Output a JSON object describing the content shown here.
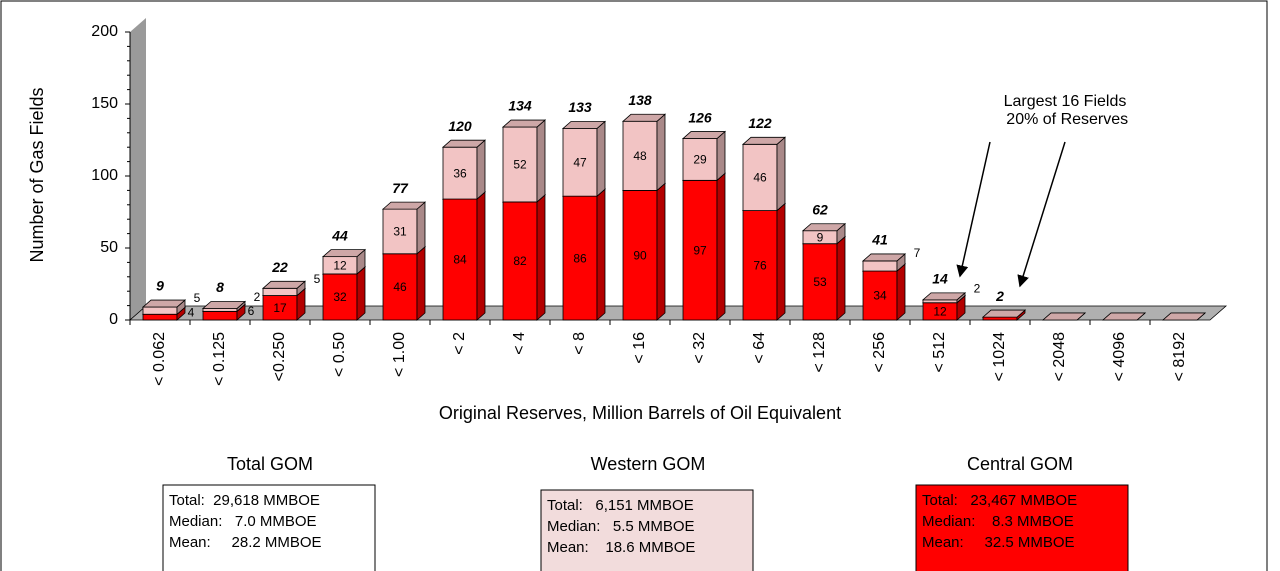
{
  "chart_data": {
    "type": "stacked_bar",
    "x_label": "Original Reserves, Million Barrels of Oil Equivalent",
    "y_label": "Number of Gas Fields",
    "categories": [
      "< 0.062",
      "< 0.125",
      "<0.250",
      "< 0.50",
      "< 1.00",
      "< 2",
      "< 4",
      "< 8",
      "< 16",
      "< 32",
      "< 64",
      "< 128",
      "< 256",
      "< 512",
      "< 1024",
      "< 2048",
      "< 4096",
      "< 8192"
    ],
    "series": [
      {
        "color": "#ff0000",
        "values": [
          4,
          6,
          17,
          32,
          46,
          84,
          82,
          86,
          90,
          97,
          76,
          53,
          34,
          12,
          2,
          0,
          0,
          0
        ],
        "value_labels": [
          "4",
          "6",
          "17",
          "32",
          "46",
          "84",
          "82",
          "86",
          "90",
          "97",
          "76",
          "53",
          "34",
          "12",
          null,
          null,
          null,
          null
        ]
      },
      {
        "color": "#f2c4c4",
        "values": [
          5,
          2,
          5,
          12,
          31,
          36,
          52,
          47,
          48,
          29,
          46,
          9,
          7,
          2,
          0,
          0,
          0,
          0
        ],
        "value_labels": [
          "5",
          "2",
          "5",
          "12",
          "31",
          "36",
          "52",
          "47",
          "48",
          "29",
          "46",
          "9",
          "7",
          "2",
          null,
          null,
          null,
          null
        ]
      }
    ],
    "totals": [
      9,
      8,
      22,
      44,
      77,
      120,
      134,
      133,
      138,
      126,
      122,
      62,
      41,
      14,
      2,
      null,
      null,
      null
    ],
    "ylim": [
      0,
      200
    ],
    "yticks": [
      0,
      50,
      100,
      150,
      200
    ],
    "annotation": [
      "Largest 16 Fields",
      " 20% of Reserves"
    ]
  },
  "panels": [
    {
      "title": "Total GOM",
      "background": "#ffffff",
      "lines": [
        "Total:  29,618 MMBOE",
        "Median:   7.0 MMBOE",
        "Mean:     28.2 MMBOE"
      ]
    },
    {
      "title": "Western GOM",
      "background": "#f2dcdc",
      "lines": [
        "Total:   6,151 MMBOE",
        "Median:   5.5 MMBOE",
        "Mean:    18.6 MMBOE"
      ]
    },
    {
      "title": "Central GOM",
      "background": "#ff0000",
      "lines": [
        "Total:   23,467 MMBOE",
        "Median:    8.3 MMBOE",
        "Mean:     32.5 MMBOE"
      ]
    }
  ]
}
